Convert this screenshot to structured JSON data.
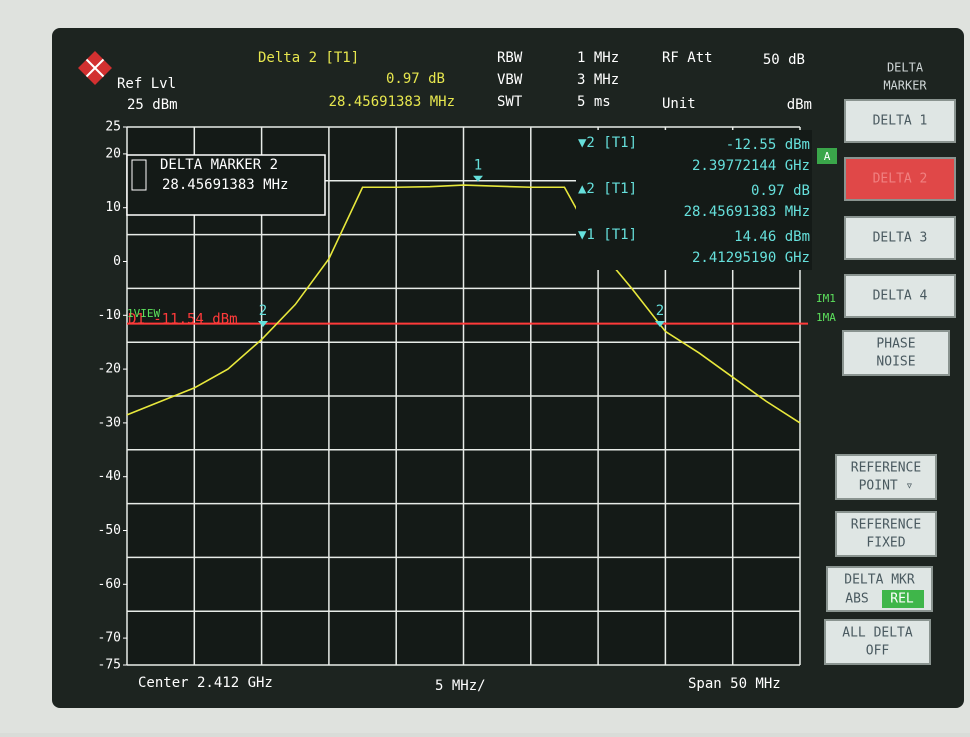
{
  "header": {
    "ref_label": "Ref Lvl",
    "ref_value": "25 dBm",
    "marker_title": "Delta 2 [T1]",
    "marker_level": "0.97 dB",
    "marker_freq": "28.45691383 MHz",
    "settings": [
      [
        "RBW",
        "1 MHz"
      ],
      [
        "VBW",
        "3 MHz"
      ],
      [
        "SWT",
        "5 ms"
      ]
    ],
    "rf_att_label": "RF Att",
    "rf_att_value": "50 dB",
    "unit_label": "Unit",
    "unit_value": "dBm"
  },
  "marker_box": {
    "title": "DELTA MARKER 2",
    "value": "28.45691383 MHz"
  },
  "readouts": [
    [
      "▼2 [T1]",
      "-12.55 dBm",
      "2.39772144 GHz"
    ],
    [
      "▲2 [T1]",
      "0.97 dB",
      "28.45691383 MHz"
    ],
    [
      "▼1 [T1]",
      "14.46 dBm",
      "2.41295190 GHz"
    ]
  ],
  "side_labels": {
    "view": "1VIEW",
    "trace_a": "A",
    "im": "IM1",
    "ma": "1MA"
  },
  "plot": {
    "ylim": [
      -75,
      25
    ],
    "yticks": [
      25,
      20,
      10,
      0,
      -10,
      -20,
      -30,
      -40,
      -50,
      -60,
      -70,
      -75
    ],
    "grid_lines": [
      25,
      15,
      5,
      -5,
      -15,
      -25,
      -35,
      -45,
      -55,
      -65,
      -75
    ],
    "trace": [
      -28.5,
      -26,
      -23.5,
      -20,
      -14.5,
      -8,
      0.5,
      13.8,
      13.8,
      13.9,
      14.2,
      14,
      13.8,
      13.8,
      2.5,
      -5,
      -13,
      -17,
      -21.5,
      -26,
      -30
    ],
    "display_line": {
      "label": "D1 -11.54 dBm",
      "value": -11.54
    },
    "markers": [
      "1",
      "2",
      "2"
    ]
  },
  "footer": {
    "center": "Center 2.412 GHz",
    "scale": "5 MHz/",
    "span": "Span 50 MHz"
  },
  "softkey_title": [
    "DELTA",
    "MARKER"
  ],
  "softkeys": [
    [
      "DELTA 1"
    ],
    [
      "DELTA 2"
    ],
    [
      "DELTA 3"
    ],
    [
      "DELTA 4"
    ],
    [
      "PHASE",
      "NOISE"
    ],
    [
      "REFERENCE",
      "POINT ▿"
    ],
    [
      "REFERENCE",
      "FIXED"
    ],
    [
      "DELTA MKR",
      "ABS",
      "REL"
    ],
    [
      "ALL DELTA",
      "OFF"
    ]
  ]
}
